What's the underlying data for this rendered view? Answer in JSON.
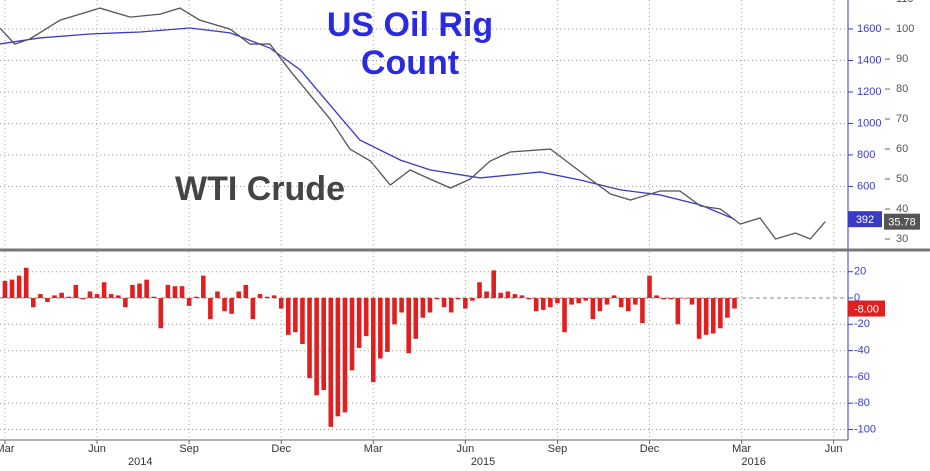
{
  "chart_data": [
    {
      "type": "line",
      "title": "US Oil Rig Count",
      "annotation": "WTI Crude",
      "xlim": [
        0.3,
        119.6
      ],
      "ylim": [
        209,
        1784
      ],
      "yticks": [
        600,
        800,
        1000,
        1200,
        1400,
        1600
      ],
      "y2lim": [
        27,
        109.7
      ],
      "y2ticks": [
        30,
        40,
        50,
        60,
        70,
        80,
        90,
        100,
        110
      ],
      "grid": true,
      "series": [
        {
          "name": "US Oil Rig Count",
          "color": "#3a3ac8",
          "axis": "y",
          "x": [
            0.3,
            5.9,
            13.0,
            20.1,
            27.1,
            32.8,
            38.4,
            42.7,
            46.9,
            51.1,
            56.8,
            61.0,
            68.1,
            73.7,
            76.6,
            82.2,
            87.9,
            93.5,
            99.2,
            104.0
          ],
          "values": [
            1505,
            1543,
            1568,
            1581,
            1606,
            1575,
            1479,
            1340,
            1117,
            895,
            768,
            705,
            654,
            679,
            692,
            641,
            578,
            546,
            482,
            392
          ]
        },
        {
          "name": "WTI Crude",
          "color": "#555555",
          "axis": "y2",
          "x": [
            0.3,
            2.4,
            4.5,
            8.8,
            11.6,
            14.4,
            18.7,
            22.9,
            25.7,
            28.5,
            32.8,
            35.6,
            38.4,
            41.3,
            44.1,
            46.9,
            49.7,
            52.6,
            55.4,
            58.2,
            61.0,
            63.9,
            66.7,
            69.5,
            72.3,
            78.0,
            80.8,
            83.6,
            86.5,
            89.3,
            93.5,
            96.3,
            99.2,
            102.0,
            104.8,
            107.6,
            109.8,
            112.6,
            114.7,
            116.8
          ],
          "values": [
            100.3,
            95,
            96.7,
            103,
            105,
            107,
            104,
            105,
            107,
            103,
            100,
            95,
            95,
            86,
            78,
            70,
            60,
            56,
            48,
            53,
            50,
            47,
            50,
            56,
            59,
            60,
            55,
            50,
            45,
            43,
            46,
            46,
            41,
            40,
            35,
            37,
            30,
            32,
            30,
            35.78
          ]
        }
      ]
    },
    {
      "type": "bar",
      "color": "#e02020",
      "xlim": [
        0.3,
        119.6
      ],
      "ylim": [
        -108,
        35
      ],
      "yticks": [
        20,
        0,
        -20,
        -40,
        -60,
        -80,
        -100
      ],
      "xticks": [
        {
          "value": 1,
          "label": "Mar"
        },
        {
          "value": 14,
          "label": "Jun"
        },
        {
          "value": 27,
          "label": "Sep"
        },
        {
          "value": 40,
          "label": "Dec"
        },
        {
          "value": 53,
          "label": "Mar"
        },
        {
          "value": 66,
          "label": "Jun"
        },
        {
          "value": 79,
          "label": "Sep"
        },
        {
          "value": 92,
          "label": "Dec"
        },
        {
          "value": 105,
          "label": "Mar"
        },
        {
          "value": 118,
          "label": "Jun"
        }
      ],
      "year_labels": [
        {
          "value": 20.1,
          "label": "2014"
        },
        {
          "value": 68.5,
          "label": "2015"
        },
        {
          "value": 106.7,
          "label": "2016"
        }
      ],
      "x": [
        1,
        2,
        3,
        4,
        5,
        6,
        7,
        8,
        9,
        10,
        11,
        12,
        13,
        14,
        15,
        16,
        17,
        18,
        19,
        20,
        21,
        22,
        23,
        24,
        25,
        26,
        27,
        28,
        29,
        30,
        31,
        32,
        33,
        34,
        35,
        36,
        37,
        38,
        39,
        40,
        41,
        42,
        43,
        44,
        45,
        46,
        47,
        48,
        49,
        50,
        51,
        52,
        53,
        54,
        55,
        56,
        57,
        58,
        59,
        60,
        61,
        62,
        63,
        64,
        65,
        66,
        67,
        68,
        69,
        70,
        71,
        72,
        73,
        74,
        75,
        76,
        77,
        78,
        79,
        80,
        81,
        82,
        83,
        84,
        85,
        86,
        87,
        88,
        89,
        90,
        91,
        92,
        93,
        94,
        95,
        96,
        97,
        98,
        99,
        100,
        101,
        102,
        103,
        104
      ],
      "values": [
        13,
        14,
        17,
        23,
        -7,
        3,
        -3,
        2,
        4,
        1,
        10,
        -1,
        5,
        3,
        12,
        3,
        2,
        -7,
        10,
        11,
        14,
        1,
        -23,
        10,
        9,
        9,
        -6,
        1,
        17,
        -16,
        5,
        -10,
        -12,
        5,
        10,
        -16,
        3,
        1,
        2,
        -8,
        -28,
        -26,
        -35,
        -61,
        -74,
        -70,
        -98,
        -90,
        -87,
        -55,
        -38,
        -29,
        -64,
        -46,
        -41,
        -20,
        -11,
        -42,
        -31,
        -15,
        -11,
        -1,
        -7,
        -11,
        -1,
        -8,
        -2,
        12,
        5,
        21,
        4,
        5,
        3,
        2,
        -1,
        -10,
        -9,
        -7,
        -4,
        -26,
        -5,
        -4,
        -2,
        -16,
        -10,
        -5,
        2,
        -7,
        -10,
        -5,
        -19,
        17,
        2,
        -1,
        -1,
        -20,
        0,
        -5,
        -31,
        -28,
        -27,
        -23,
        -15,
        -8
      ],
      "value_labels": [
        null,
        null,
        null,
        null,
        null,
        null,
        null,
        null,
        null,
        null,
        null,
        null,
        null,
        null,
        null,
        null,
        null,
        null,
        null,
        null,
        null,
        null,
        null,
        null,
        null,
        null,
        null,
        null,
        null,
        null,
        null,
        null,
        null,
        null,
        null,
        null,
        null,
        null,
        null,
        null,
        null,
        null,
        null,
        null,
        null,
        null,
        null,
        null,
        null,
        null,
        null,
        null,
        null,
        null,
        null,
        null,
        null,
        null,
        null,
        null,
        null,
        null,
        null,
        null,
        null,
        null,
        null,
        null,
        null,
        null,
        null,
        null,
        null,
        null,
        null,
        null,
        null,
        null,
        null,
        null,
        null,
        null,
        null,
        null,
        null,
        null,
        null,
        null,
        null,
        null,
        null,
        null,
        null,
        null,
        null,
        null,
        null,
        null,
        null,
        null,
        null,
        null,
        null,
        "-8.00"
      ]
    }
  ]
}
